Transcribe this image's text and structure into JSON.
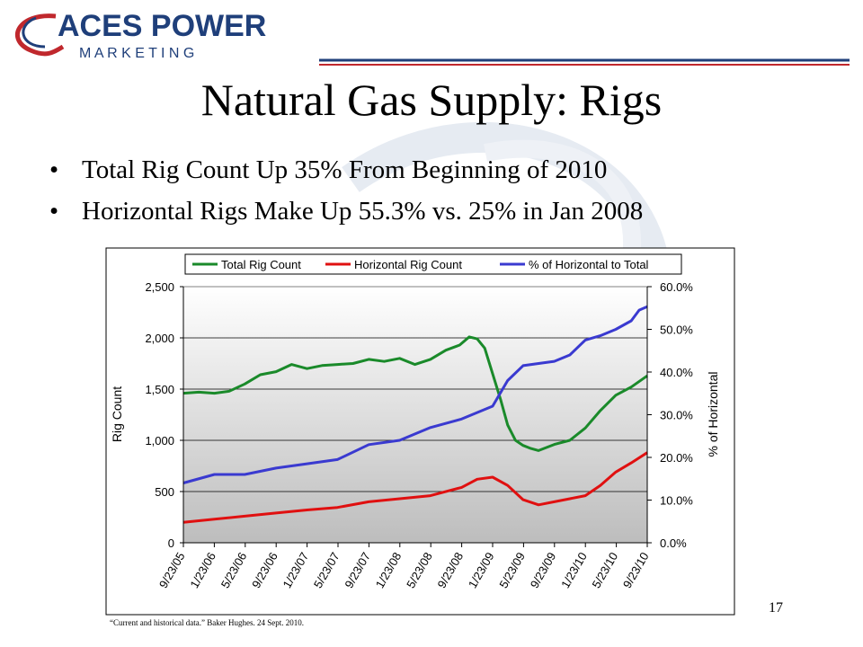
{
  "logo": {
    "name_top": "ACES POWER",
    "name_bottom": "M A R K E T I N G"
  },
  "slide": {
    "title": "Natural Gas Supply: Rigs",
    "bullets": [
      "Total Rig Count Up 35% From Beginning of 2010",
      "Horizontal Rigs Make Up 55.3% vs. 25% in Jan 2008"
    ],
    "page_number": "17",
    "source_note": "“Current and historical data.” Baker Hughes. 24 Sept. 2010."
  },
  "colors": {
    "total_rig_count": "#1a8a2a",
    "horizontal_rig_count": "#e01010",
    "pct_horizontal": "#3a3ad0",
    "brand": "#1f3f7a",
    "plot_top": "#ffffff",
    "plot_bottom": "#bdbdbd"
  },
  "chart_data": {
    "type": "line",
    "legend_position": "top",
    "grid": true,
    "ylabel": "Rig Count",
    "y2label": "% of Horizontal",
    "ylim": [
      0,
      2500
    ],
    "y2lim": [
      0,
      60
    ],
    "y_ticks": [
      "0",
      "500",
      "1,000",
      "1,500",
      "2,000",
      "2,500"
    ],
    "y2_ticks": [
      "0.0%",
      "10.0%",
      "20.0%",
      "30.0%",
      "40.0%",
      "50.0%",
      "60.0%"
    ],
    "x_ticks": [
      "9/23/05",
      "1/23/06",
      "5/23/06",
      "9/23/06",
      "1/23/07",
      "5/23/07",
      "9/23/07",
      "1/23/08",
      "5/23/08",
      "9/23/08",
      "1/23/09",
      "5/23/09",
      "9/23/09",
      "1/23/10",
      "5/23/10",
      "9/23/10"
    ],
    "x_range": [
      "2005-09-23",
      "2010-09-24"
    ],
    "series": [
      {
        "name": "Total Rig Count",
        "axis": "left",
        "x": [
          "2005-09-23",
          "2005-11-23",
          "2006-01-23",
          "2006-03-23",
          "2006-05-23",
          "2006-07-23",
          "2006-09-23",
          "2006-11-23",
          "2007-01-23",
          "2007-03-23",
          "2007-05-23",
          "2007-07-23",
          "2007-09-23",
          "2007-11-23",
          "2008-01-23",
          "2008-03-23",
          "2008-05-23",
          "2008-07-23",
          "2008-09-15",
          "2008-10-23",
          "2008-11-23",
          "2008-12-23",
          "2009-01-23",
          "2009-02-23",
          "2009-03-23",
          "2009-04-23",
          "2009-05-23",
          "2009-06-23",
          "2009-07-23",
          "2009-09-23",
          "2009-11-23",
          "2010-01-23",
          "2010-03-23",
          "2010-05-23",
          "2010-07-23",
          "2010-09-24"
        ],
        "y": [
          1460,
          1470,
          1460,
          1480,
          1550,
          1640,
          1670,
          1740,
          1700,
          1730,
          1740,
          1750,
          1790,
          1770,
          1800,
          1740,
          1790,
          1880,
          1930,
          2010,
          1990,
          1900,
          1650,
          1400,
          1150,
          1000,
          950,
          920,
          900,
          960,
          1000,
          1120,
          1290,
          1440,
          1520,
          1630
        ]
      },
      {
        "name": "Horizontal Rig Count",
        "axis": "left",
        "x": [
          "2005-09-23",
          "2006-01-23",
          "2006-05-23",
          "2006-09-23",
          "2007-01-23",
          "2007-05-23",
          "2007-09-23",
          "2008-01-23",
          "2008-05-23",
          "2008-09-23",
          "2008-11-23",
          "2009-01-23",
          "2009-03-23",
          "2009-05-23",
          "2009-07-23",
          "2009-09-23",
          "2009-11-23",
          "2010-01-23",
          "2010-03-23",
          "2010-05-23",
          "2010-07-23",
          "2010-09-24"
        ],
        "y": [
          200,
          230,
          260,
          290,
          320,
          345,
          400,
          430,
          460,
          540,
          620,
          640,
          560,
          420,
          370,
          400,
          430,
          460,
          560,
          690,
          780,
          880
        ]
      },
      {
        "name": "% of Horizontal to Total",
        "axis": "right",
        "x": [
          "2005-09-23",
          "2006-01-23",
          "2006-05-23",
          "2006-09-23",
          "2007-01-23",
          "2007-05-23",
          "2007-09-23",
          "2008-01-23",
          "2008-05-23",
          "2008-09-23",
          "2009-01-23",
          "2009-03-23",
          "2009-05-23",
          "2009-07-23",
          "2009-09-23",
          "2009-11-23",
          "2010-01-23",
          "2010-03-23",
          "2010-05-23",
          "2010-07-23",
          "2010-08-23",
          "2010-09-24"
        ],
        "y": [
          14,
          16,
          16,
          17.5,
          18.5,
          19.5,
          23,
          24,
          27,
          29,
          32,
          38,
          41.5,
          42,
          42.5,
          44,
          47.5,
          48.5,
          50,
          52,
          54.5,
          55.3
        ]
      }
    ]
  }
}
